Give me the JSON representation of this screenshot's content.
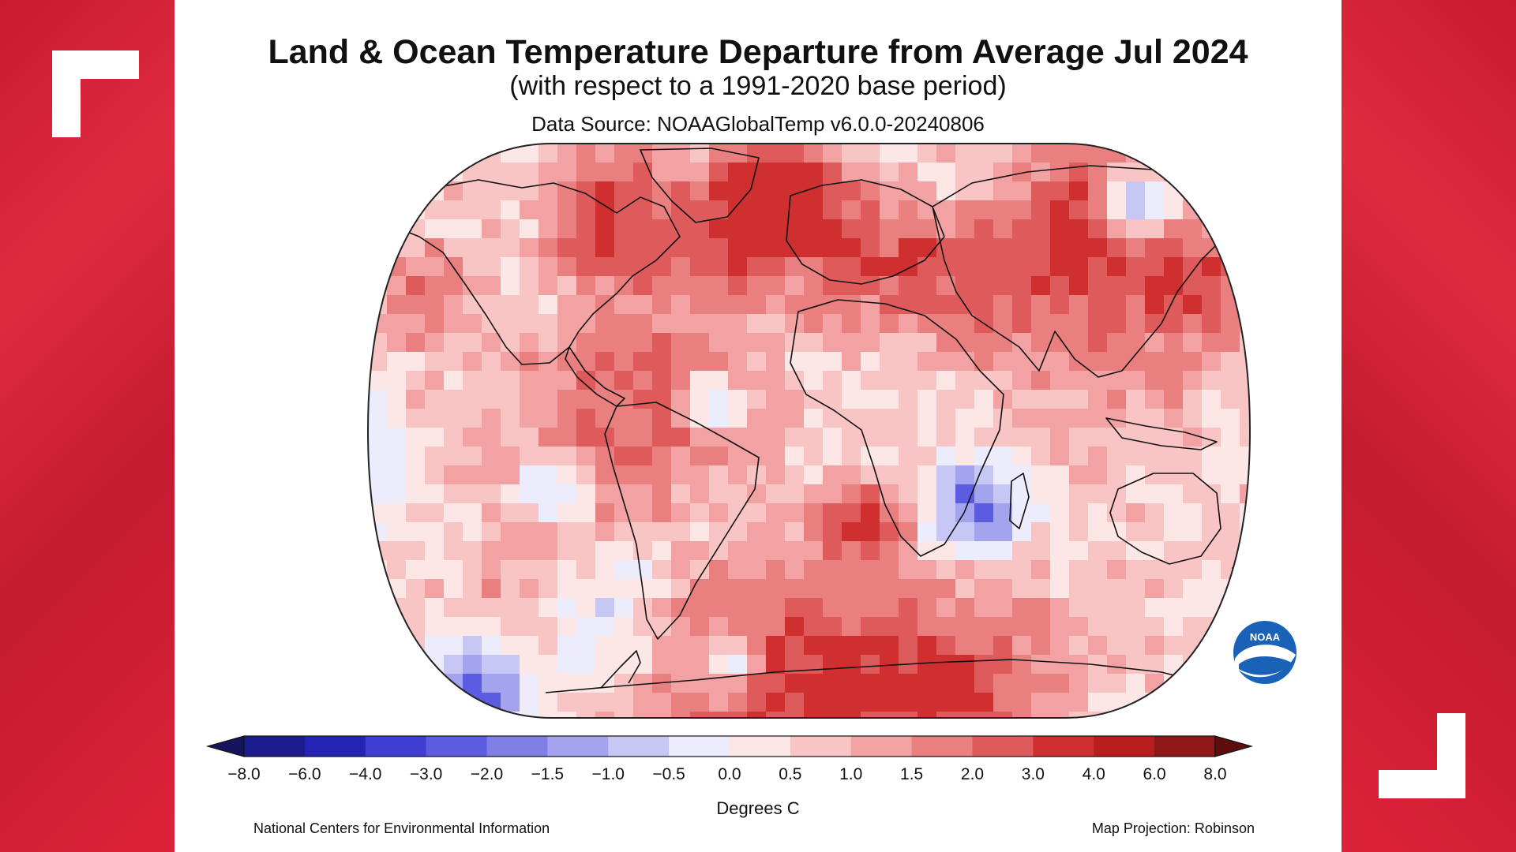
{
  "title": "Land & Ocean Temperature Departure from Average Jul 2024",
  "subtitle": "(with respect to a 1991-2020 base period)",
  "source": "Data Source: NOAAGlobalTemp v6.0.0-20240806",
  "legend": {
    "unit": "Degrees C",
    "ticks": [
      "-8.0",
      "-6.0",
      "-4.0",
      "-3.0",
      "-2.0",
      "-1.5",
      "-1.0",
      "-0.5",
      "0.0",
      "0.5",
      "1.0",
      "1.5",
      "2.0",
      "3.0",
      "4.0",
      "6.0",
      "8.0"
    ],
    "colors": [
      "#1c1c8c",
      "#2424b4",
      "#3e3ed2",
      "#5c5ce0",
      "#7f7fe6",
      "#a3a3ee",
      "#c7c7f5",
      "#ececfc",
      "#fde6e6",
      "#f9c4c4",
      "#f2a2a2",
      "#ea7f7f",
      "#df5b5b",
      "#cf2f2f",
      "#b81e1e",
      "#8f1717"
    ],
    "below_color": "#15155e",
    "above_color": "#5e0d0d"
  },
  "footer_left": "National Centers for Environmental Information",
  "footer_right": "Map Projection: Robinson",
  "logo_text": "NOAA",
  "frame_color": "#d81f36"
}
